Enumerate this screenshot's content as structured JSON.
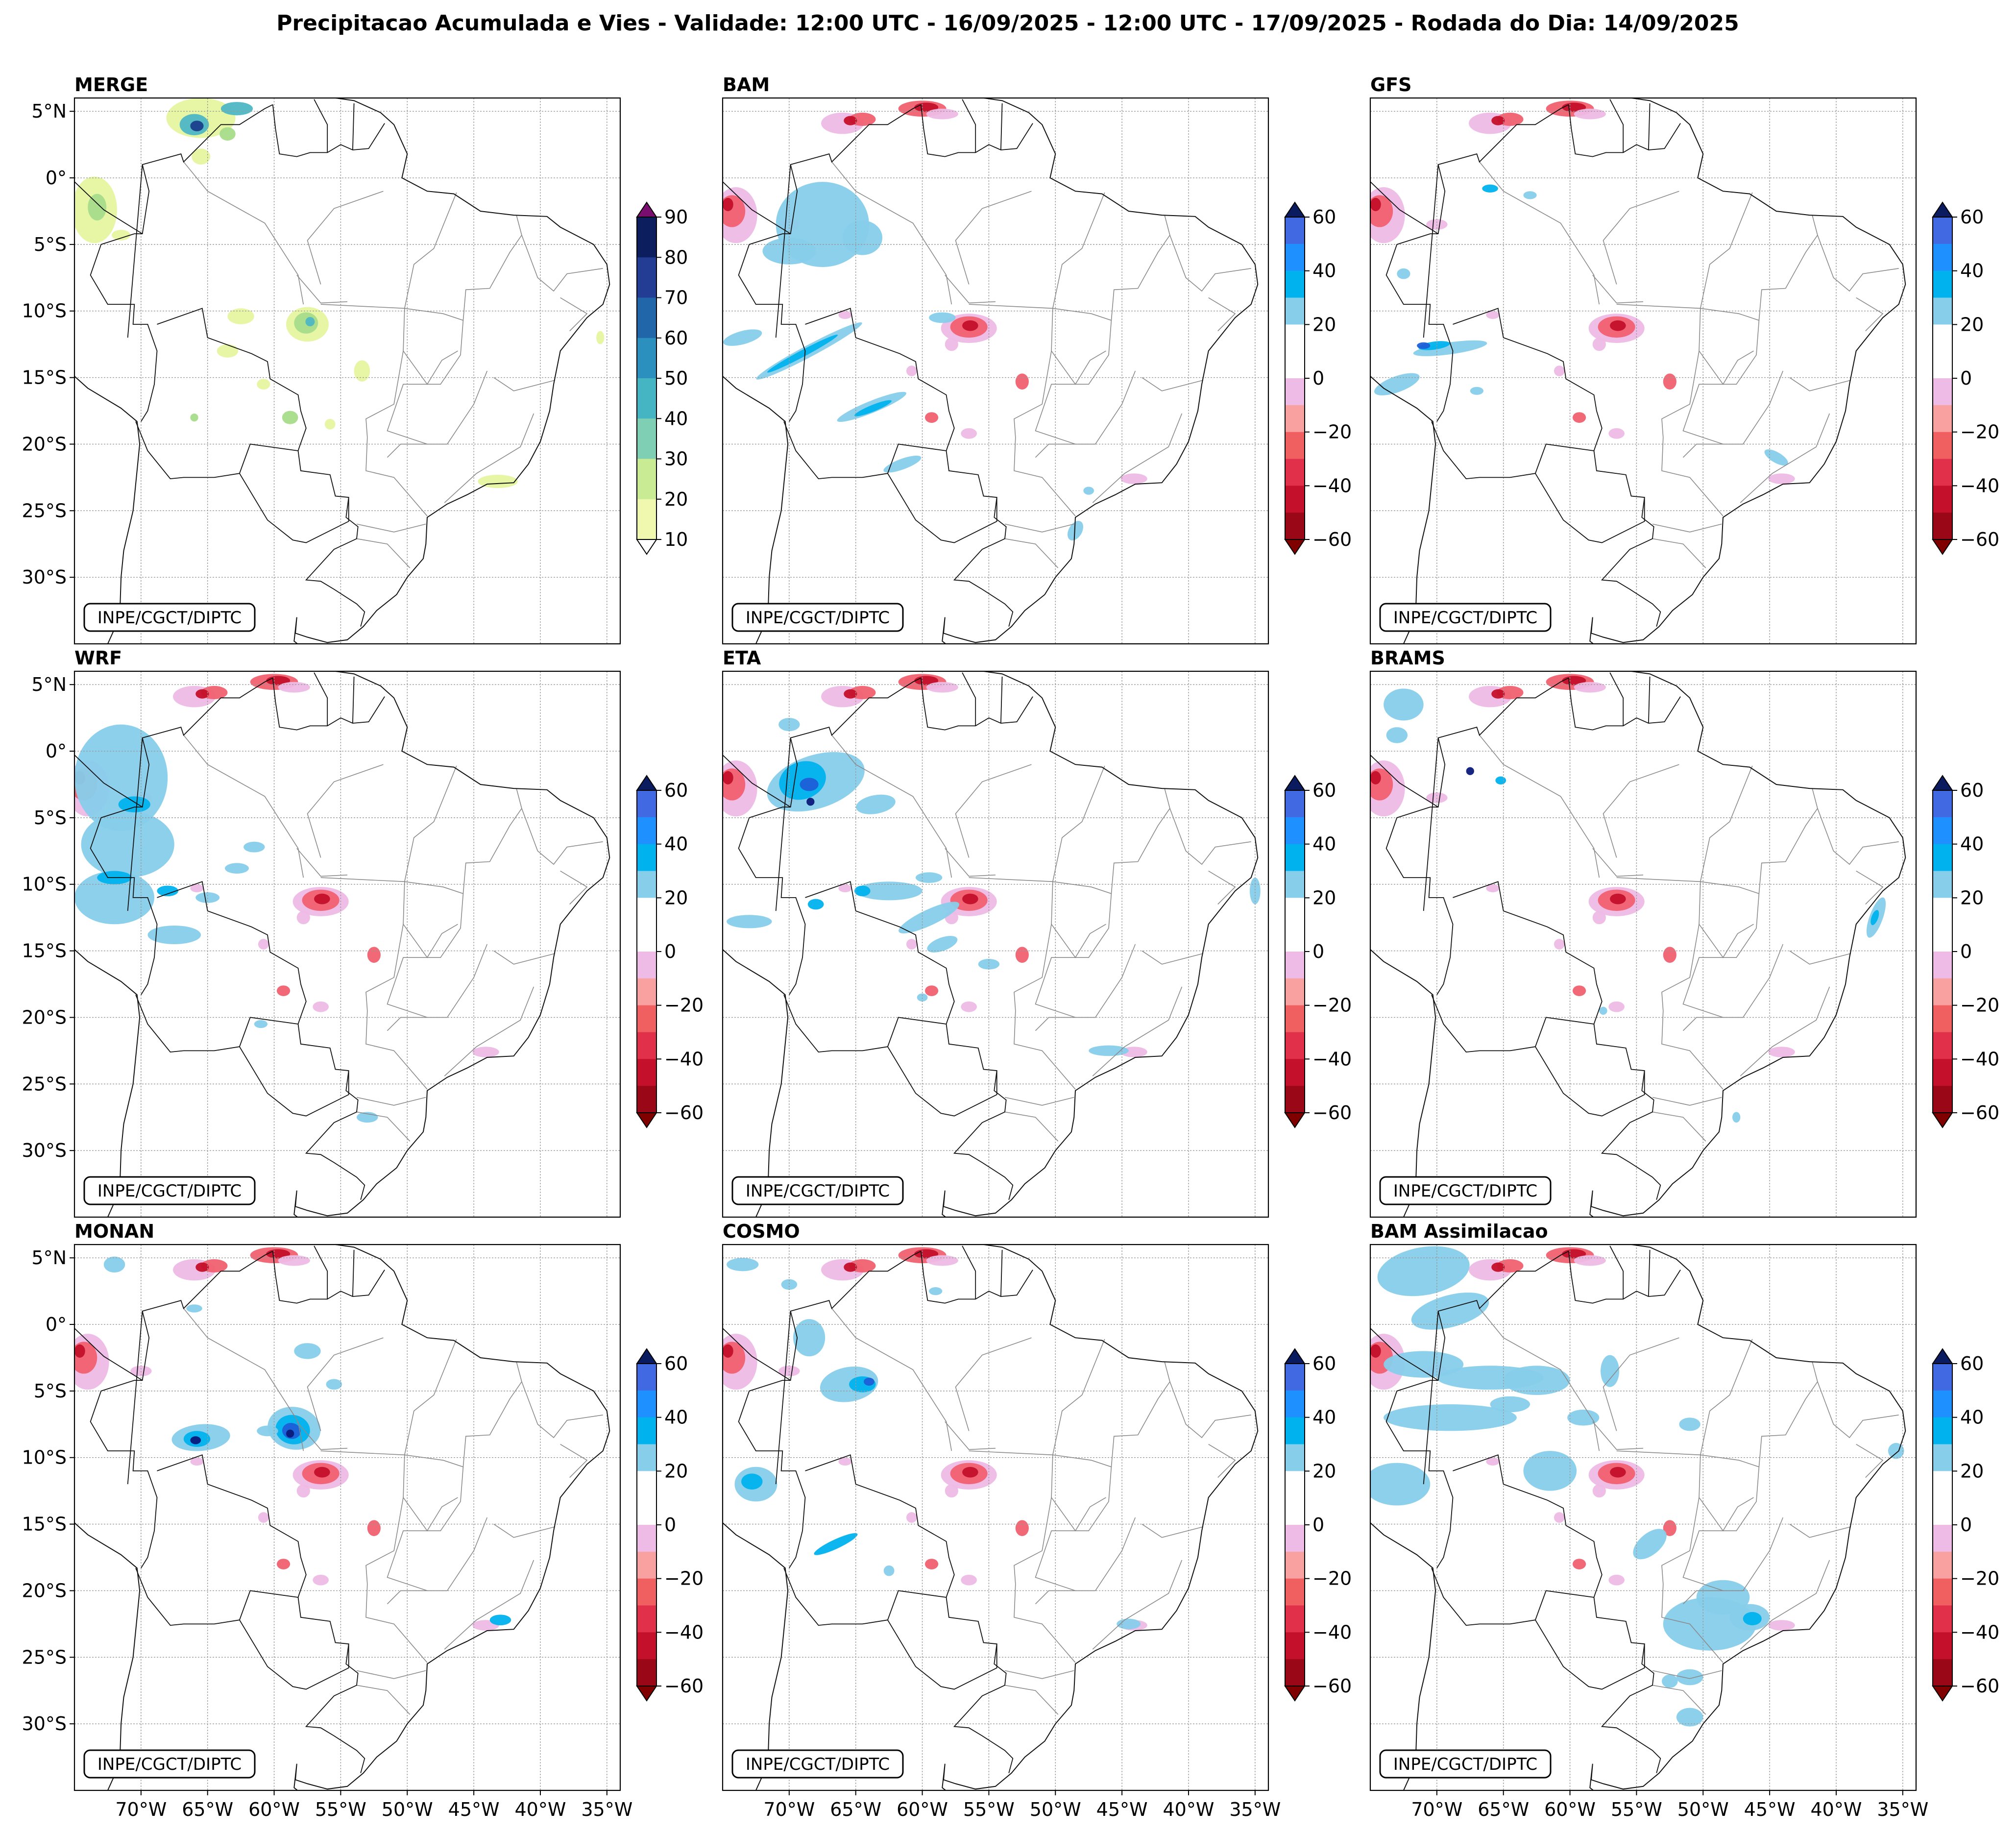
{
  "figure": {
    "title": "Precipitacao Acumulada e Vies - Validade: 12:00 UTC - 16/09/2025 - 12:00 UTC - 17/09/2025 - Rodada do Dia: 14/09/2025",
    "credit": "INPE/CGCT/DIPTC",
    "lat_labels": [
      "5°N",
      "0°",
      "5°S",
      "10°S",
      "15°S",
      "20°S",
      "25°S",
      "30°S"
    ],
    "lon_labels": [
      "70°W",
      "65°W",
      "60°W",
      "55°W",
      "50°W",
      "45°W",
      "40°W",
      "35°W"
    ]
  },
  "map_extent": {
    "lon_min": -75,
    "lon_max": -34,
    "lat_min": -35,
    "lat_max": 6
  },
  "panels": [
    {
      "name": "MERGE",
      "type": "precip"
    },
    {
      "name": "BAM",
      "type": "bias"
    },
    {
      "name": "GFS",
      "type": "bias"
    },
    {
      "name": "WRF",
      "type": "bias"
    },
    {
      "name": "ETA",
      "type": "bias"
    },
    {
      "name": "BRAMS",
      "type": "bias"
    },
    {
      "name": "MONAN",
      "type": "bias"
    },
    {
      "name": "COSMO",
      "type": "bias"
    },
    {
      "name": "BAM Assimilacao",
      "type": "bias"
    }
  ],
  "colorbars": {
    "precip": {
      "ticks": [
        "10",
        "20",
        "30",
        "40",
        "50",
        "60",
        "70",
        "80",
        "90"
      ],
      "colors": [
        "#f0f8b0",
        "#c8eb94",
        "#7ecfb4",
        "#45b5c4",
        "#2c90be",
        "#2266aa",
        "#233d94",
        "#0d1e5e"
      ],
      "extend_low": "#ffffff",
      "extend_high": "#7a0e6e"
    },
    "bias": {
      "ticks": [
        "60",
        "40",
        "20",
        "0",
        "−20",
        "−40",
        "−60"
      ],
      "colors_top_to_bottom": [
        "#4169e1",
        "#1e90ff",
        "#00b2ee",
        "#87ceeb",
        "#ffffff",
        "#ffffff",
        "#eebbe6",
        "#f9a0a0",
        "#f06060",
        "#e0304a",
        "#c4102a",
        "#9a0818"
      ],
      "extend_high": "#0b1b60",
      "extend_low": "#800000"
    }
  },
  "field_colors": {
    "blue_light": "#87ceeb",
    "blue_mid": "#00b2ee",
    "blue_dark": "#1e5fd8",
    "blue_navy": "#0a1a7a",
    "pink_light": "#eebbe6",
    "red_mid": "#f06070",
    "red_dark": "#c4102a",
    "green_light": "#e6f5a0",
    "green_mid": "#a8dc8a",
    "teal": "#4db6c4",
    "navy_precip": "#1b3f8c"
  }
}
